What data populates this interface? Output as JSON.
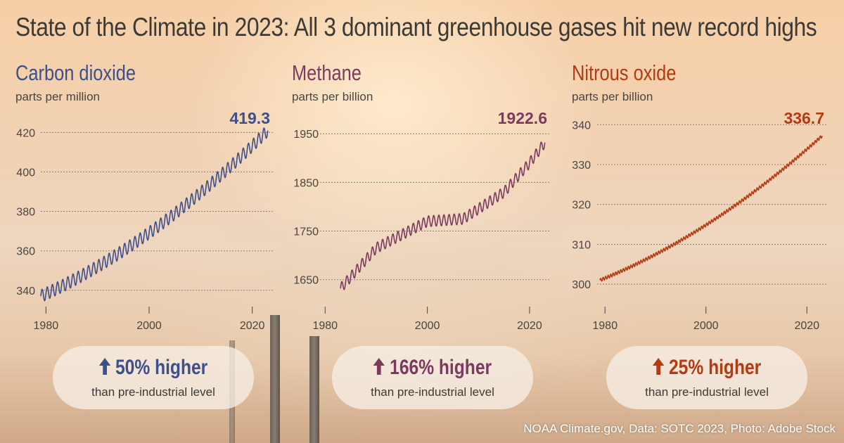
{
  "title": "State of the Climate in 2023: All 3 dominant greenhouse gases hit new record highs",
  "credit": "NOAA Climate.gov, Data: SOTC 2023, Photo: Adobe Stock",
  "chart_data": [
    {
      "type": "line",
      "title": "Carbon dioxide",
      "ylabel": "parts per million",
      "color": "#3f4f8a",
      "x_ticks": [
        "1980",
        "2000",
        "2020"
      ],
      "xlim": [
        1979,
        2024
      ],
      "y_ticks": [
        "340",
        "360",
        "380",
        "400",
        "420"
      ],
      "ylim": [
        336,
        428
      ],
      "grid": true,
      "start_year": 1979,
      "end_year": 2023,
      "start_value": 337,
      "end_value": 421,
      "seasonal_amplitude": 3.2,
      "cycles_per_year": 1,
      "latest_value_label": "419.3",
      "badge": {
        "text": "50% higher",
        "subtext": "than pre-industrial level",
        "arrow": "up-arrow-icon"
      }
    },
    {
      "type": "line",
      "title": "Methane",
      "ylabel": "parts per billion",
      "color": "#7b3a5e",
      "x_ticks": [
        "1980",
        "2000",
        "2020"
      ],
      "xlim": [
        1979,
        2024
      ],
      "y_ticks": [
        "1650",
        "1750",
        "1850",
        "1950"
      ],
      "ylim": [
        1612,
        1985
      ],
      "grid": true,
      "start_year": 1983,
      "end_year": 2023,
      "anchor_years": [
        1983,
        1990,
        2000,
        2007,
        2015,
        2020,
        2023
      ],
      "anchor_values": [
        1632,
        1715,
        1770,
        1775,
        1830,
        1890,
        1932
      ],
      "seasonal_amplitude": 11,
      "cycles_per_year": 1,
      "latest_value_label": "1922.6",
      "badge": {
        "text": "166% higher",
        "subtext": "than pre-industrial level",
        "arrow": "up-arrow-icon"
      }
    },
    {
      "type": "line",
      "title": "Nitrous oxide",
      "ylabel": "parts per billion",
      "color": "#b33a12",
      "x_ticks": [
        "1980",
        "2000",
        "2020"
      ],
      "xlim": [
        1979,
        2024
      ],
      "y_ticks": [
        "300",
        "310",
        "320",
        "330",
        "340"
      ],
      "ylim": [
        296.5,
        342
      ],
      "grid": true,
      "start_year": 1979,
      "end_year": 2023,
      "start_value": 301,
      "end_value": 337.2,
      "seasonal_amplitude": 0.4,
      "cycles_per_year": 2,
      "latest_value_label": "336.7",
      "badge": {
        "text": "25% higher",
        "subtext": "than pre-industrial level",
        "arrow": "up-arrow-icon"
      }
    }
  ]
}
